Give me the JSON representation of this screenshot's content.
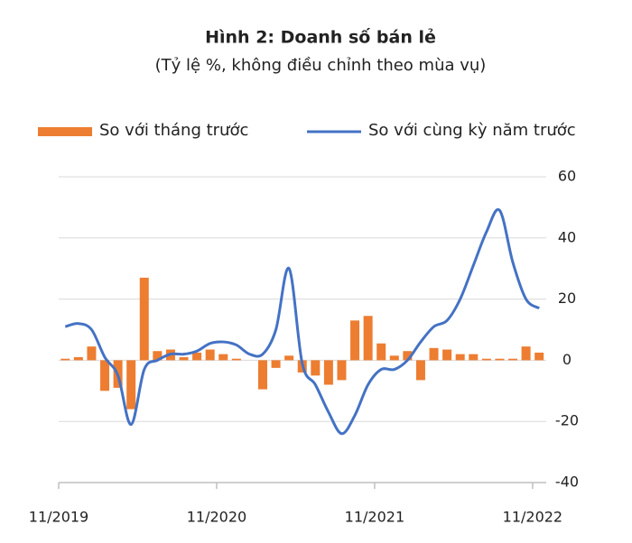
{
  "chart_data": {
    "type": "bar-line",
    "title": "Hình 2: Doanh số bán lẻ",
    "subtitle": "(Tỷ lệ %, không điều chỉnh theo mùa vụ)",
    "categories": [
      "11/2019",
      null,
      null,
      null,
      null,
      null,
      null,
      null,
      null,
      null,
      null,
      null,
      "11/2020",
      null,
      null,
      null,
      null,
      null,
      null,
      null,
      null,
      null,
      null,
      null,
      "11/2021",
      null,
      null,
      null,
      null,
      null,
      null,
      null,
      null,
      null,
      null,
      null,
      "11/2022"
    ],
    "series": [
      {
        "name": "So với tháng trước",
        "type": "bar",
        "color": "#ed7d31",
        "axis": "y2",
        "values": [
          0.5,
          1,
          4.5,
          -10,
          -9,
          -16,
          27,
          3,
          3.5,
          1,
          2.5,
          3.5,
          2,
          0.5,
          0,
          -9.5,
          -2.5,
          1.5,
          -4,
          -5,
          -8,
          -6.5,
          13,
          14.5,
          5.5,
          1.5,
          3,
          -6.5,
          4,
          3.5,
          2,
          2,
          0.5,
          0.5,
          0.5,
          4.5,
          2.5
        ]
      },
      {
        "name": "So với cùng kỳ năm trước",
        "type": "line",
        "color": "#4472c4",
        "axis": "y2",
        "values": [
          11,
          12,
          10,
          1,
          -5,
          -21,
          -3,
          0,
          2,
          2,
          3,
          5.5,
          6,
          5,
          2,
          2,
          10,
          30,
          -1,
          -8,
          -17,
          -24,
          -18,
          -8,
          -3,
          -3,
          0,
          6,
          11,
          13,
          20,
          31,
          42,
          49,
          32,
          20,
          17
        ]
      }
    ],
    "y2lim": [
      -40,
      60
    ],
    "y2ticks": [
      -40,
      -20,
      0,
      20,
      40,
      60
    ],
    "grid": true
  }
}
